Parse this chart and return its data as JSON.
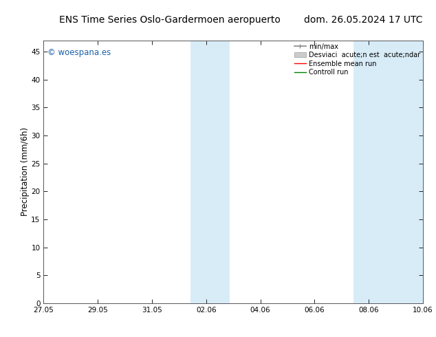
{
  "title_left": "ENS Time Series Oslo-Gardermoen aeropuerto",
  "title_right": "dom. 26.05.2024 17 UTC",
  "ylabel": "Precipitation (mm/6h)",
  "ylim": [
    0,
    47
  ],
  "yticks": [
    0,
    5,
    10,
    15,
    20,
    25,
    30,
    35,
    40,
    45
  ],
  "xtick_labels": [
    "27.05",
    "29.05",
    "31.05",
    "02.06",
    "04.06",
    "06.06",
    "08.06",
    "10.06"
  ],
  "xtick_positions": [
    0,
    2,
    4,
    6,
    8,
    10,
    12,
    14
  ],
  "xlim": [
    0,
    14
  ],
  "watermark": "© woespana.es",
  "watermark_color": "#1a5fa8",
  "legend_label1": "min/max",
  "legend_label2": "Desviaci  acute;n est  acute;ndar",
  "legend_label3": "Ensemble mean run",
  "legend_label4": "Controll run",
  "shaded_regions": [
    {
      "x_start": 5.43,
      "x_end": 6.86
    },
    {
      "x_start": 11.43,
      "x_end": 14.0
    }
  ],
  "shaded_color": "#d8ecf8",
  "background_color": "#ffffff",
  "grid_color": "#aaaaaa",
  "title_fontsize": 10,
  "tick_label_fontsize": 7.5,
  "ylabel_fontsize": 8.5,
  "legend_fontsize": 7,
  "watermark_fontsize": 8.5
}
